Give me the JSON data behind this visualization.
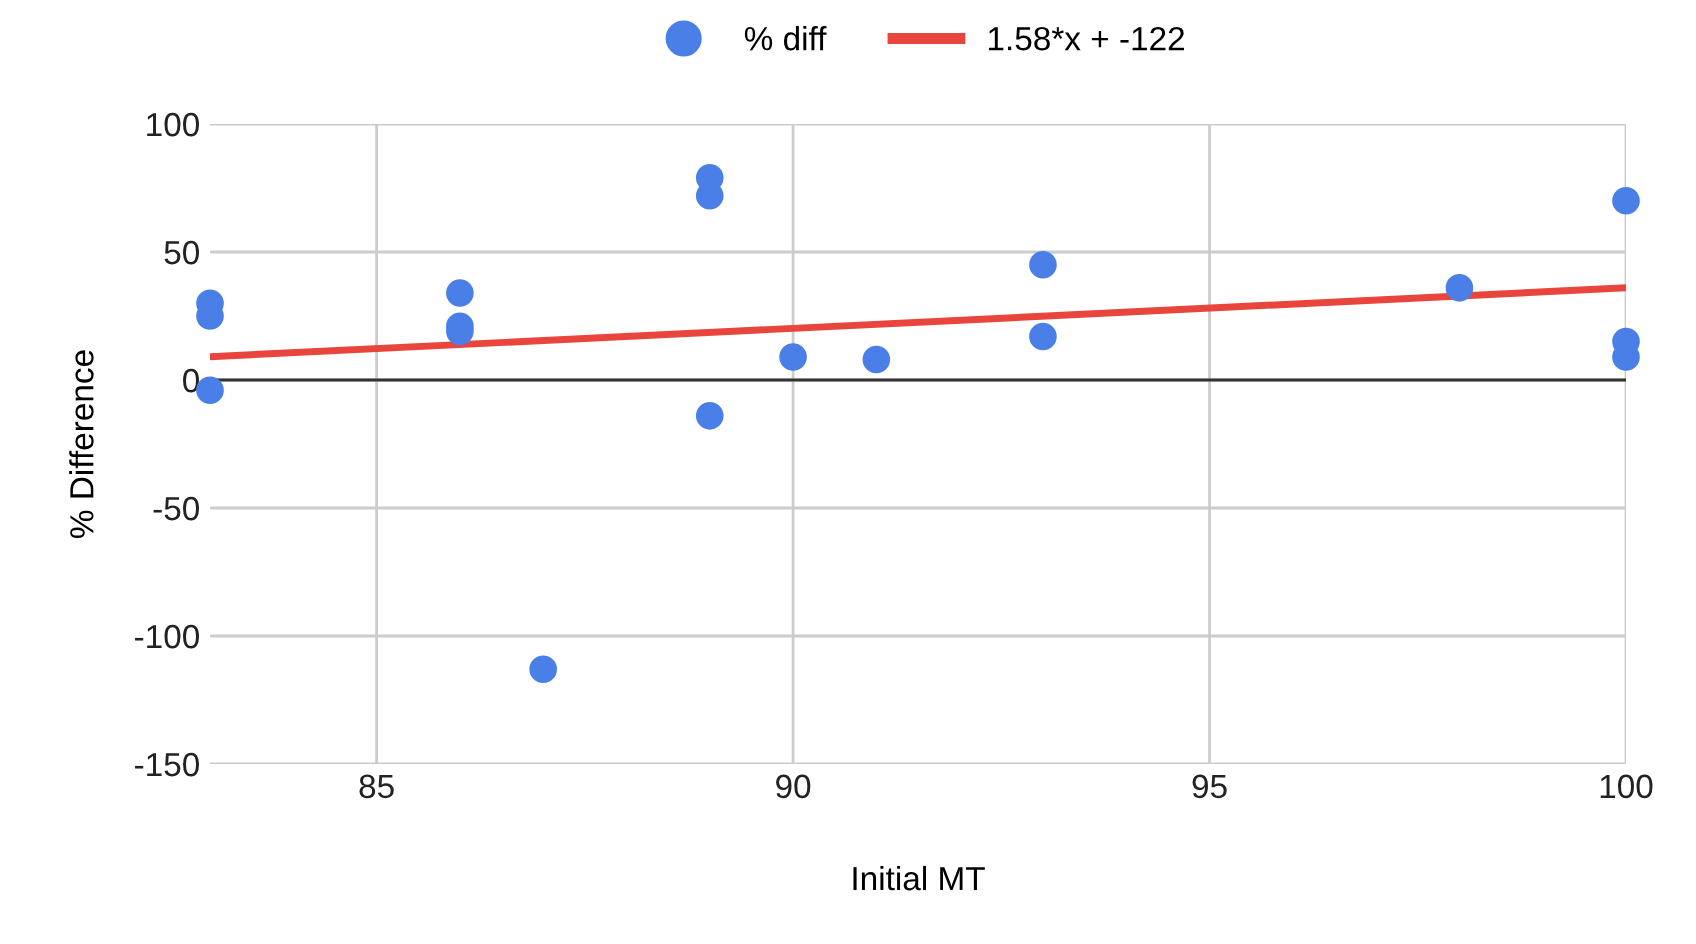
{
  "chart_data": {
    "type": "scatter",
    "xlabel": "Initial MT",
    "ylabel": "% Difference",
    "series": [
      {
        "name": "% diff",
        "color": "#4a7fe8",
        "marker": "circle",
        "x": [
          83,
          83,
          83,
          86,
          86,
          86,
          87,
          89,
          89,
          89,
          90,
          91,
          93,
          93,
          98,
          100,
          100,
          100
        ],
        "values": [
          30,
          25,
          -4,
          34,
          21,
          19,
          -113,
          79,
          72,
          -14,
          9,
          8,
          45,
          17,
          36,
          70,
          15,
          9
        ]
      },
      {
        "name": "1.58*x + -122",
        "type": "line",
        "color": "#e8453c",
        "marker": "none",
        "x": [
          83,
          100
        ],
        "values": [
          9.1,
          36
        ]
      }
    ],
    "xlim": [
      83,
      100
    ],
    "ylim": [
      -150,
      100
    ],
    "xticks": [
      85,
      90,
      95,
      100
    ],
    "yticks": [
      -150,
      -100,
      -50,
      0,
      50,
      100
    ],
    "ref_lines": [
      {
        "axis": "y",
        "value": 0,
        "label": null,
        "color": "#333333"
      }
    ],
    "grid": true,
    "legend": "top"
  }
}
